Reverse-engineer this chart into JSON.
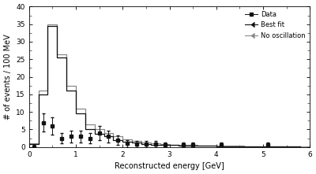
{
  "title": "",
  "xlabel": "Reconstructed energy [GeV]",
  "ylabel": "# of events / 100 MeV",
  "xlim": [
    0,
    6
  ],
  "ylim": [
    0,
    40
  ],
  "yticks": [
    0,
    5,
    10,
    15,
    20,
    25,
    30,
    35,
    40
  ],
  "xticks": [
    0,
    1,
    2,
    3,
    4,
    5,
    6
  ],
  "bin_edges": [
    0.0,
    0.2,
    0.4,
    0.6,
    0.8,
    1.0,
    1.2,
    1.4,
    1.6,
    1.8,
    2.0,
    2.2,
    2.4,
    2.6,
    2.8,
    3.0,
    3.2,
    3.4,
    3.6,
    3.8,
    4.0,
    4.2,
    4.4,
    4.6,
    4.8,
    5.0,
    5.2,
    5.4,
    5.6,
    5.8,
    6.0
  ],
  "best_fit_hist": [
    0.8,
    15.0,
    34.5,
    25.5,
    16.0,
    9.5,
    5.0,
    3.8,
    3.0,
    2.0,
    1.5,
    1.2,
    0.9,
    0.7,
    0.6,
    0.5,
    0.45,
    0.4,
    0.35,
    0.3,
    0.25,
    0.22,
    0.2,
    0.18,
    0.15,
    0.12,
    0.1,
    0.09,
    0.08,
    0.07
  ],
  "no_osc_hist": [
    1.0,
    16.0,
    35.0,
    26.5,
    17.5,
    11.0,
    6.5,
    5.0,
    4.0,
    3.0,
    2.2,
    1.7,
    1.3,
    1.0,
    0.85,
    0.7,
    0.6,
    0.55,
    0.48,
    0.42,
    0.36,
    0.32,
    0.28,
    0.25,
    0.22,
    0.18,
    0.15,
    0.13,
    0.11,
    0.09
  ],
  "data_x": [
    0.1,
    0.3,
    0.5,
    0.7,
    0.9,
    1.1,
    1.3,
    1.5,
    1.7,
    1.9,
    2.1,
    2.3,
    2.5,
    2.7,
    2.9,
    3.3,
    3.5,
    4.1,
    5.1
  ],
  "data_y": [
    0.0,
    7.0,
    6.0,
    2.5,
    3.0,
    3.0,
    2.5,
    4.0,
    3.0,
    2.0,
    1.0,
    0.8,
    0.8,
    0.8,
    0.5,
    0.5,
    0.5,
    0.5,
    0.5
  ],
  "data_yerr": [
    0.5,
    2.6,
    2.4,
    1.5,
    1.7,
    1.7,
    1.5,
    2.0,
    1.7,
    1.4,
    1.0,
    0.9,
    0.9,
    0.9,
    0.7,
    0.7,
    0.7,
    0.7,
    0.7
  ],
  "color_best_fit": "#111111",
  "color_no_osc": "#888888",
  "color_data": "#111111",
  "background_color": "#ffffff",
  "legend_labels": [
    "Data",
    "Best fit",
    "No oscillation"
  ]
}
